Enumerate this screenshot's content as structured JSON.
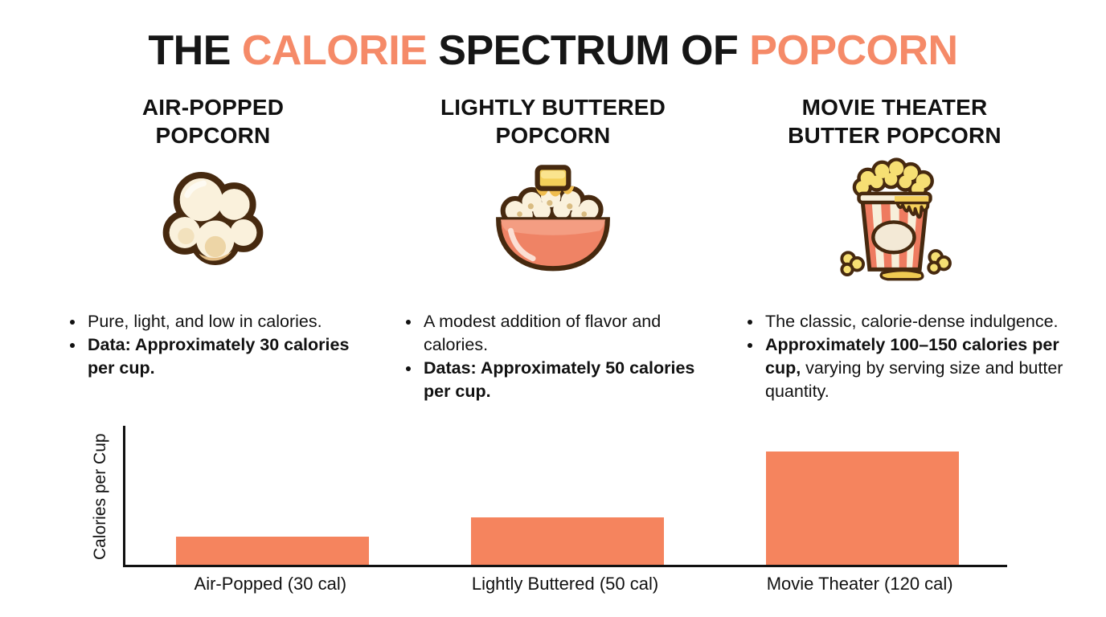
{
  "title": {
    "full_text": "THE CALORIE SPECTRUM OF POPCORN",
    "parts": [
      {
        "text": "THE ",
        "color": "#161616"
      },
      {
        "text": "CALORIE",
        "color": "#f58a68"
      },
      {
        "text": " SPECTRUM OF ",
        "color": "#161616"
      },
      {
        "text": "POPCORN",
        "color": "#f58a68"
      }
    ]
  },
  "columns": [
    {
      "heading_line1": "AIR-POPPED",
      "heading_line2": "POPCORN",
      "icon": "air-popped-popcorn-kernel-icon",
      "bullets": [
        {
          "segments": [
            {
              "text": "Pure, light, and low in calories.",
              "bold": false
            }
          ]
        },
        {
          "segments": [
            {
              "text": "Data: Approximately 30 calories per cup.",
              "bold": true
            }
          ]
        }
      ]
    },
    {
      "heading_line1": "LIGHTLY BUTTERED",
      "heading_line2": "POPCORN",
      "icon": "buttered-popcorn-bowl-icon",
      "bullets": [
        {
          "segments": [
            {
              "text": "A modest addition of flavor and calories.",
              "bold": false
            }
          ]
        },
        {
          "segments": [
            {
              "text": "Datas: Approximately 50 calories per cup.",
              "bold": true
            }
          ]
        }
      ]
    },
    {
      "heading_line1": "MOVIE THEATER",
      "heading_line2": "BUTTER POPCORN",
      "icon": "movie-theater-popcorn-box-icon",
      "bullets": [
        {
          "segments": [
            {
              "text": "The classic, calorie-dense indulgence.",
              "bold": false
            }
          ]
        },
        {
          "segments": [
            {
              "text": "Approximately 100–150 calories per cup,",
              "bold": true
            },
            {
              "text": " varying by serving size and butter quantity.",
              "bold": false
            }
          ]
        }
      ]
    }
  ],
  "chart_data": {
    "type": "bar",
    "categories": [
      "Air-Popped (30 cal)",
      "Lightly Buttered (50 cal)",
      "Movie Theater (120 cal)"
    ],
    "values": [
      30,
      50,
      120
    ],
    "title": "",
    "xlabel": "",
    "ylabel": "Calories per Cup",
    "ylim": [
      0,
      150
    ],
    "grid": false,
    "legend": false,
    "bar_color": "#f5845e",
    "axis_color": "#111111"
  },
  "colors": {
    "background": "#ffffff",
    "text": "#111111",
    "accent_orange": "#f58a68",
    "bar_orange": "#f5845e",
    "illustration_outline": "#46290f",
    "popcorn_cream": "#faf1dc",
    "popcorn_yellow": "#f6df73",
    "butter_yellow": "#f4d05a",
    "bowl_coral": "#ef8365"
  }
}
